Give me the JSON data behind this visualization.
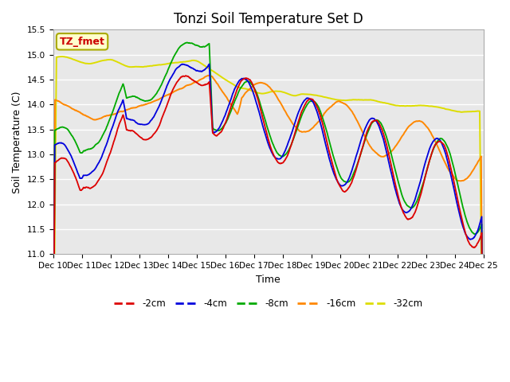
{
  "title": "Tonzi Soil Temperature Set D",
  "xlabel": "Time",
  "ylabel": "Soil Temperature (C)",
  "ylim": [
    11.0,
    15.5
  ],
  "annotation_text": "TZ_fmet",
  "annotation_color": "#cc0000",
  "annotation_bg": "#ffffcc",
  "annotation_border": "#aaaa00",
  "colors": {
    "-2cm": "#dd0000",
    "-4cm": "#0000dd",
    "-8cm": "#00aa00",
    "-16cm": "#ff8800",
    "-32cm": "#dddd00"
  },
  "legend_labels": [
    "-2cm",
    "-4cm",
    "-8cm",
    "-16cm",
    "-32cm"
  ],
  "x_tick_labels": [
    "Dec 10",
    "Dec 11",
    "Dec 12",
    "Dec 13",
    "Dec 14",
    "Dec 15",
    "Dec 16",
    "Dec 17",
    "Dec 18",
    "Dec 19",
    "Dec 20",
    "Dec 21",
    "Dec 22",
    "Dec 23",
    "Dec 24",
    "Dec 25"
  ],
  "background_color": "#ffffff",
  "plot_bg_color": "#e8e8e8",
  "grid_color": "#ffffff",
  "title_fontsize": 12,
  "axis_label_fontsize": 9,
  "tick_fontsize": 7.5
}
